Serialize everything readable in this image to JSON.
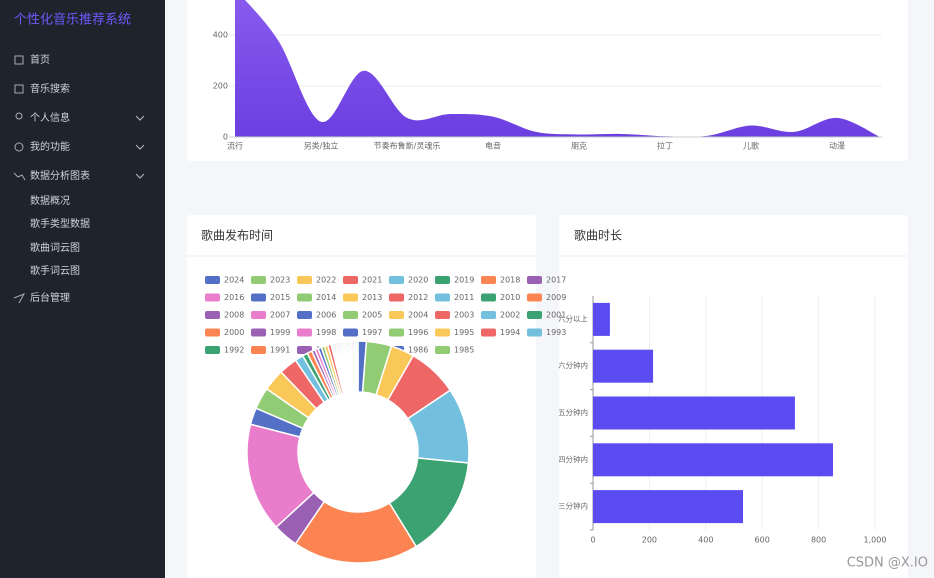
{
  "sidebar": {
    "title": "个性化音乐推荐系统",
    "menu": [
      "首页",
      "音乐搜索",
      "个人信息",
      "我的功能",
      "数据分析图表"
    ],
    "submenu": [
      "数据概况",
      "歌手类型数据",
      "歌曲词云图",
      "歌手词云图"
    ],
    "last": "后台管理"
  },
  "chart_data": [
    {
      "type": "area",
      "categories": [
        "流行",
        null,
        "另类/独立",
        null,
        "节奏布鲁斯/灵魂乐",
        null,
        "电音",
        null,
        "朋克",
        null,
        "拉丁",
        null,
        "儿歌",
        null,
        "动漫",
        null
      ],
      "values": [
        580,
        380,
        60,
        260,
        75,
        90,
        80,
        20,
        10,
        12,
        3,
        5,
        45,
        20,
        75,
        0
      ],
      "ylim": [
        0,
        600
      ],
      "yticks": [
        0,
        200,
        400
      ],
      "color": "#7b4be6",
      "grid": true
    },
    {
      "type": "pie",
      "title": "歌曲发布时间",
      "categories": [
        "2024",
        "2023",
        "2022",
        "2021",
        "2020",
        "2019",
        "2018",
        "2017",
        "2016",
        "2015",
        "2014",
        "2013",
        "2012",
        "2011",
        "2010",
        "2009",
        "2008",
        "2007",
        "2006",
        "2005",
        "2004",
        "2003",
        "2002",
        "2001",
        "2000",
        "1999",
        "1998",
        "1997",
        "1996",
        "1995",
        "1994",
        "1993",
        "1992",
        "1991",
        "1990",
        "1987",
        "1986",
        "1985"
      ],
      "values": [
        5,
        15,
        14,
        30,
        45,
        60,
        75,
        15,
        65,
        10,
        13,
        13,
        11,
        5,
        3,
        3,
        2,
        2,
        2,
        2,
        2,
        2,
        1,
        1,
        1,
        1,
        1,
        1,
        1,
        1,
        1,
        1,
        1,
        1,
        1,
        1,
        1,
        1
      ],
      "colors": [
        "#5470c6",
        "#91cc75",
        "#fac858",
        "#ee6666",
        "#73c0de",
        "#3ba272",
        "#fc8452",
        "#9a60b4",
        "#ea7ccc"
      ]
    },
    {
      "type": "hbar",
      "title": "歌曲时长",
      "categories": [
        "三分钟内",
        "四分钟内",
        "五分钟内",
        "六分钟内",
        "六分以上"
      ],
      "values": [
        532,
        851,
        716,
        213,
        60
      ],
      "xlim": [
        0,
        1000
      ],
      "xticks": [
        0,
        200,
        400,
        600,
        800,
        {
          "value": 1000,
          "label": "1,000"
        }
      ],
      "color": "#5b4cf2",
      "grid": true
    }
  ],
  "watermark": "CSDN @X.IO"
}
